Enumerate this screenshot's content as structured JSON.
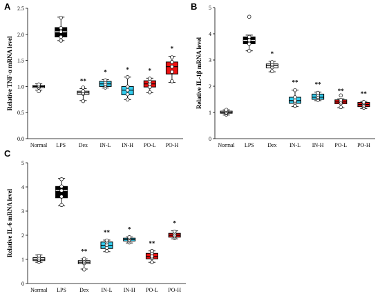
{
  "chart_data": [
    {
      "panel": "A",
      "type": "box",
      "ylabel": "Relative TNF-α mRNA level",
      "ylim": [
        0,
        2.5
      ],
      "yticks": [
        "0.0",
        "0.5",
        "1.0",
        "1.5",
        "2.0",
        "2.5"
      ],
      "categories": [
        "Normal",
        "LPS",
        "Dex",
        "IN-L",
        "IN-H",
        "PO-L",
        "PO-H"
      ],
      "colors": [
        "#ffffff",
        "#000000",
        "#ffffff",
        "#33ccee",
        "#33ccee",
        "#ee1111",
        "#ee1111"
      ],
      "significance": [
        "",
        "",
        "**",
        "*",
        "*",
        "*",
        "*"
      ],
      "boxes": [
        {
          "q1": 0.98,
          "median": 1.0,
          "q3": 1.02,
          "whisker_low": 0.93,
          "whisker_high": 1.05,
          "points": [
            0.91,
            0.98,
            1.0,
            1.02,
            1.04
          ]
        },
        {
          "q1": 1.95,
          "median": 2.05,
          "q3": 2.13,
          "whisker_low": 1.88,
          "whisker_high": 2.33,
          "points": [
            1.88,
            1.95,
            2.05,
            2.12,
            2.32
          ]
        },
        {
          "q1": 0.85,
          "median": 0.88,
          "q3": 0.91,
          "whisker_low": 0.73,
          "whisker_high": 0.96,
          "points": [
            0.72,
            0.86,
            0.88,
            0.91,
            0.98
          ]
        },
        {
          "q1": 1.0,
          "median": 1.05,
          "q3": 1.1,
          "whisker_low": 0.97,
          "whisker_high": 1.13,
          "points": [
            0.98,
            1.02,
            1.05,
            1.09,
            1.12
          ]
        },
        {
          "q1": 0.84,
          "median": 0.93,
          "q3": 1.0,
          "whisker_low": 0.75,
          "whisker_high": 1.18,
          "points": [
            0.75,
            0.85,
            0.93,
            1.0,
            1.18
          ]
        },
        {
          "q1": 0.99,
          "median": 1.05,
          "q3": 1.11,
          "whisker_low": 0.88,
          "whisker_high": 1.16,
          "points": [
            0.89,
            0.99,
            1.05,
            1.1,
            1.15
          ]
        },
        {
          "q1": 1.24,
          "median": 1.38,
          "q3": 1.47,
          "whisker_low": 1.08,
          "whisker_high": 1.58,
          "points": [
            1.1,
            1.28,
            1.38,
            1.47,
            1.56
          ]
        }
      ]
    },
    {
      "panel": "B",
      "type": "box",
      "ylabel": "Relative IL-1β mRNA level",
      "ylim": [
        0,
        5
      ],
      "yticks": [
        "0",
        "1",
        "2",
        "3",
        "4",
        "5"
      ],
      "categories": [
        "Normal",
        "LPS",
        "Dex",
        "IN-L",
        "IN-H",
        "PO-L",
        "PO-H"
      ],
      "colors": [
        "#ffffff",
        "#000000",
        "#ffffff",
        "#33ccee",
        "#33ccee",
        "#ee1111",
        "#ee1111"
      ],
      "significance": [
        "",
        "",
        "*",
        "**",
        "**",
        "**",
        "**"
      ],
      "boxes": [
        {
          "q1": 0.97,
          "median": 1.0,
          "q3": 1.05,
          "whisker_low": 0.9,
          "whisker_high": 1.1,
          "points": [
            0.92,
            0.98,
            1.0,
            1.05,
            1.1
          ]
        },
        {
          "q1": 3.62,
          "median": 3.75,
          "q3": 3.88,
          "whisker_low": 3.35,
          "whisker_high": 3.95,
          "points": [
            3.35,
            3.62,
            3.75,
            3.88,
            4.65
          ]
        },
        {
          "q1": 2.7,
          "median": 2.8,
          "q3": 2.85,
          "whisker_low": 2.55,
          "whisker_high": 2.95,
          "points": [
            2.57,
            2.72,
            2.8,
            2.85,
            2.92
          ]
        },
        {
          "q1": 1.35,
          "median": 1.45,
          "q3": 1.58,
          "whisker_low": 1.22,
          "whisker_high": 1.85,
          "points": [
            1.25,
            1.38,
            1.45,
            1.58,
            1.85
          ]
        },
        {
          "q1": 1.5,
          "median": 1.58,
          "q3": 1.7,
          "whisker_low": 1.45,
          "whisker_high": 1.78,
          "points": [
            1.48,
            1.55,
            1.6,
            1.68,
            1.75
          ]
        },
        {
          "q1": 1.33,
          "median": 1.4,
          "q3": 1.48,
          "whisker_low": 1.18,
          "whisker_high": 1.52,
          "points": [
            1.2,
            1.35,
            1.42,
            1.48,
            1.65
          ]
        },
        {
          "q1": 1.22,
          "median": 1.3,
          "q3": 1.38,
          "whisker_low": 1.15,
          "whisker_high": 1.42,
          "points": [
            1.18,
            1.25,
            1.3,
            1.36,
            1.4
          ]
        }
      ]
    },
    {
      "panel": "C",
      "type": "box",
      "ylabel": "Relative IL-6 mRNA level",
      "ylim": [
        0,
        5
      ],
      "yticks": [
        "0",
        "1",
        "2",
        "3",
        "4",
        "5"
      ],
      "categories": [
        "Normal",
        "LPS",
        "Dex",
        "IN-L",
        "IN-H",
        "PO-L",
        "PO-H"
      ],
      "colors": [
        "#ffffff",
        "#000000",
        "#ffffff",
        "#33ccee",
        "#33ccee",
        "#ee1111",
        "#ee1111"
      ],
      "significance": [
        "",
        "",
        "**",
        "**",
        "*",
        "**",
        "*"
      ],
      "boxes": [
        {
          "q1": 0.95,
          "median": 1.0,
          "q3": 1.07,
          "whisker_low": 0.88,
          "whisker_high": 1.18,
          "points": [
            0.9,
            0.97,
            1.0,
            1.07,
            1.15
          ]
        },
        {
          "q1": 3.55,
          "median": 3.85,
          "q3": 4.02,
          "whisker_low": 3.22,
          "whisker_high": 4.35,
          "points": [
            3.25,
            3.6,
            3.85,
            4.02,
            4.32
          ]
        },
        {
          "q1": 0.82,
          "median": 0.88,
          "q3": 0.95,
          "whisker_low": 0.6,
          "whisker_high": 1.02,
          "points": [
            0.58,
            0.84,
            0.9,
            0.95,
            1.02
          ]
        },
        {
          "q1": 1.45,
          "median": 1.58,
          "q3": 1.72,
          "whisker_low": 1.32,
          "whisker_high": 1.8,
          "points": [
            1.35,
            1.48,
            1.6,
            1.7,
            1.78
          ]
        },
        {
          "q1": 1.76,
          "median": 1.82,
          "q3": 1.88,
          "whisker_low": 1.68,
          "whisker_high": 1.93,
          "points": [
            1.7,
            1.78,
            1.83,
            1.88,
            1.92
          ]
        },
        {
          "q1": 1.02,
          "median": 1.12,
          "q3": 1.25,
          "whisker_low": 0.88,
          "whisker_high": 1.35,
          "points": [
            0.88,
            1.05,
            1.12,
            1.25,
            1.35
          ]
        },
        {
          "q1": 1.92,
          "median": 2.0,
          "q3": 2.08,
          "whisker_low": 1.85,
          "whisker_high": 2.18,
          "points": [
            1.88,
            1.95,
            2.0,
            2.07,
            2.15
          ]
        }
      ]
    }
  ]
}
